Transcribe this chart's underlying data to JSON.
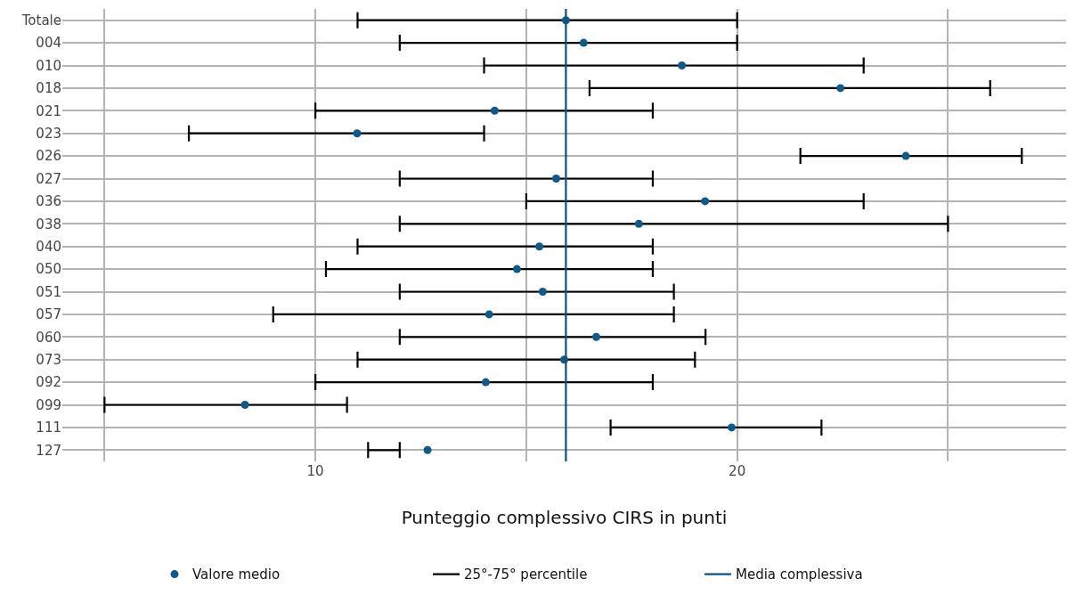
{
  "chart_data": {
    "type": "scatter",
    "orientation": "horizontal",
    "xlabel": "Punteggio complessivo CIRS in punti",
    "categories": [
      "Totale",
      "004",
      "010",
      "018",
      "021",
      "023",
      "026",
      "027",
      "036",
      "038",
      "040",
      "050",
      "051",
      "057",
      "060",
      "073",
      "092",
      "099",
      "111",
      "127"
    ],
    "series": [
      {
        "name": "Valore medio",
        "color": "#0e5a8a",
        "marker": "circle",
        "values": [
          15.94,
          16.36,
          18.69,
          22.45,
          14.25,
          10.99,
          24.0,
          15.71,
          19.24,
          17.67,
          15.31,
          14.78,
          15.39,
          14.12,
          16.66,
          15.9,
          14.04,
          8.33,
          19.87,
          12.66
        ],
        "errors": [
          [
            11,
            20
          ],
          [
            12,
            20
          ],
          [
            14,
            23
          ],
          [
            16.5,
            26
          ],
          [
            10,
            18
          ],
          [
            7,
            14
          ],
          [
            21.5,
            26.75
          ],
          [
            12,
            18
          ],
          [
            15,
            23
          ],
          [
            12,
            25
          ],
          [
            11,
            18
          ],
          [
            10.25,
            18
          ],
          [
            12,
            18.5
          ],
          [
            9,
            18.5
          ],
          [
            12,
            19.25
          ],
          [
            11,
            19
          ],
          [
            10,
            18
          ],
          [
            5,
            10.75
          ],
          [
            17,
            22
          ],
          [
            11.25,
            12
          ]
        ]
      }
    ],
    "annotations": [
      "25°-75° percentile"
    ],
    "ref_lines": [
      {
        "axis": "x",
        "value": 15.94,
        "label": "Media complessiva",
        "color": "#0e4f7e"
      }
    ],
    "xlim": [
      4,
      27.8
    ],
    "xticks": [
      {
        "value": 5,
        "label": null
      },
      10,
      {
        "value": 15,
        "label": null
      },
      20,
      {
        "value": 25,
        "label": null
      }
    ],
    "grid": true,
    "legend": "bottom"
  }
}
